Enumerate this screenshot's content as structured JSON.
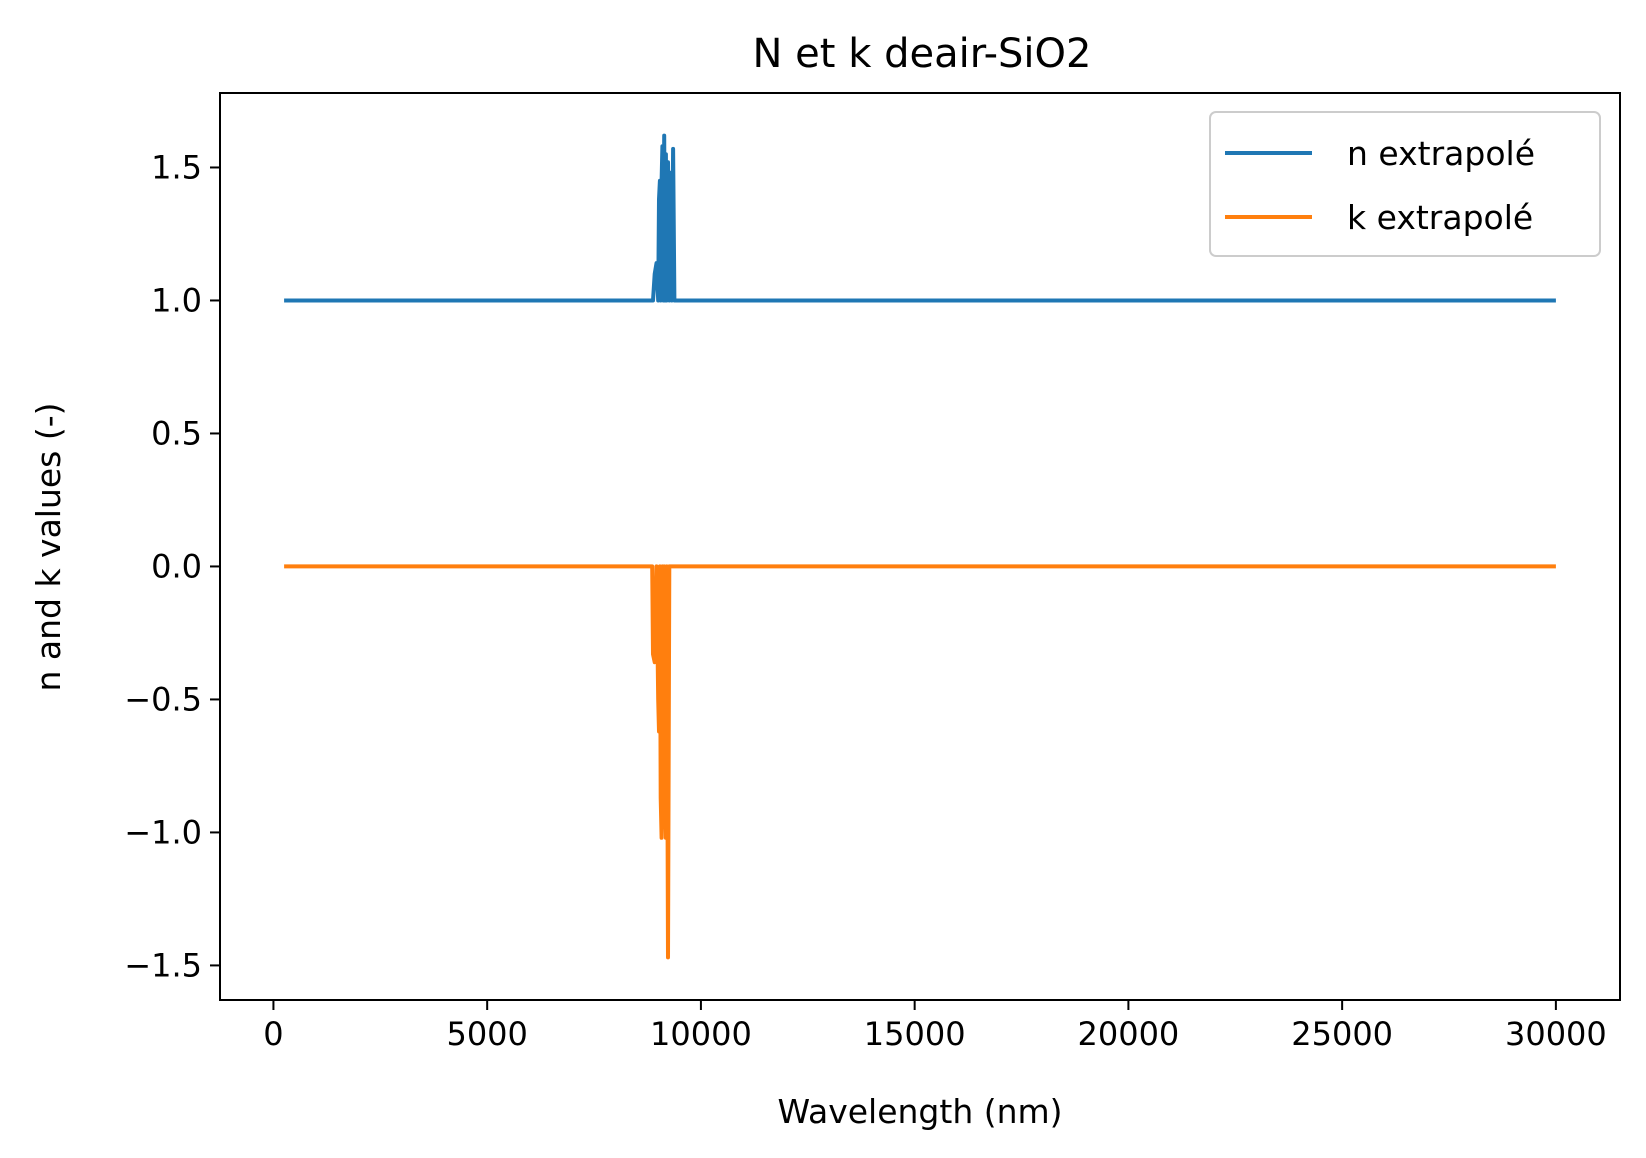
{
  "chart_data": {
    "type": "line",
    "title": "N et k deair-SiO2",
    "xlabel": "Wavelength (nm)",
    "ylabel": "n and k values (-)",
    "xlim": [
      -1250,
      31500
    ],
    "ylim": [
      -1.63,
      1.78
    ],
    "x_ticks": [
      0,
      5000,
      10000,
      15000,
      20000,
      25000,
      30000
    ],
    "x_tick_labels": [
      "0",
      "5000",
      "10000",
      "15000",
      "20000",
      "25000",
      "30000"
    ],
    "y_ticks": [
      1.5,
      1.0,
      0.5,
      0.0,
      -0.5,
      -1.0,
      -1.5
    ],
    "y_tick_labels": [
      "1.5",
      "1.0",
      "0.5",
      "0.0",
      "−0.5",
      "−1.0",
      "−1.5"
    ],
    "grid": false,
    "legend_position": "top-right",
    "series": [
      {
        "name": "n extrapolé",
        "color": "#1f77b4",
        "x": [
          250,
          8880,
          8920,
          8960,
          9000,
          9020,
          9040,
          9060,
          9080,
          9100,
          9120,
          9140,
          9160,
          9180,
          9200,
          9230,
          9260,
          9290,
          9320,
          9350,
          9380,
          9410,
          9440,
          9470,
          30000
        ],
        "y": [
          1.0,
          1.0,
          1.1,
          1.14,
          1.0,
          1.38,
          1.45,
          1.0,
          1.45,
          1.58,
          1.0,
          1.62,
          1.0,
          1.55,
          1.0,
          1.52,
          1.0,
          1.48,
          1.0,
          1.57,
          1.0,
          1.0,
          1.0,
          1.0,
          1.0
        ]
      },
      {
        "name": "k extrapolé",
        "color": "#ff7f0e",
        "x": [
          250,
          8860,
          8880,
          8920,
          8960,
          9000,
          9020,
          9040,
          9060,
          9080,
          9100,
          9120,
          9140,
          9160,
          9180,
          9200,
          9230,
          9260,
          9290,
          9320,
          9350,
          9380,
          9410,
          9440,
          30000
        ],
        "y": [
          0.0,
          0.0,
          -0.33,
          -0.36,
          0.0,
          -0.5,
          -0.62,
          0.0,
          -0.87,
          -1.02,
          0.0,
          -0.98,
          0.0,
          -0.9,
          -1.02,
          0.0,
          -1.47,
          0.0,
          0.0,
          0.0,
          0.0,
          0.0,
          0.0,
          0.0,
          0.0
        ]
      }
    ]
  }
}
